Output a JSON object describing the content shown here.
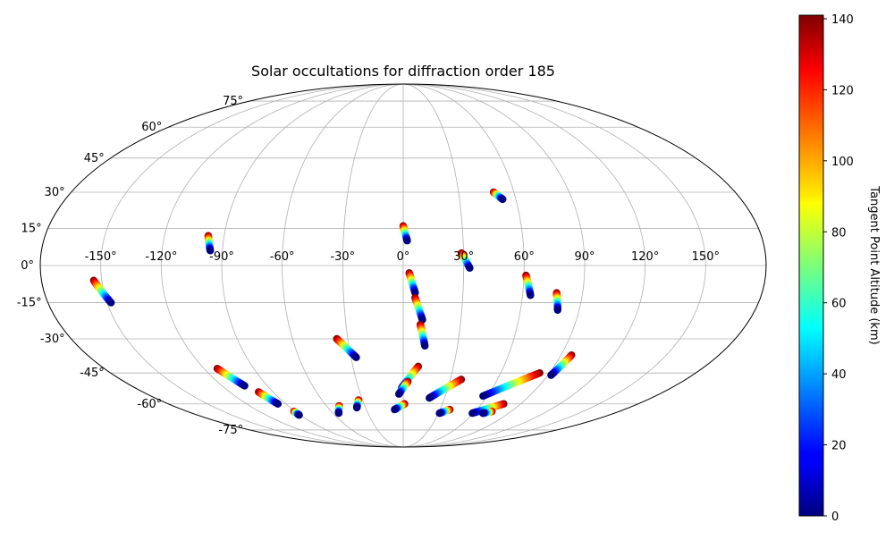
{
  "chart_data": {
    "type": "scatter",
    "projection": "mollweide",
    "title": "Solar occultations for diffraction order 185",
    "lon_ticks": [
      "-150°",
      "-120°",
      "-90°",
      "-60°",
      "-30°",
      "0°",
      "30°",
      "60°",
      "90°",
      "120°",
      "150°"
    ],
    "lon_values": [
      -150,
      -120,
      -90,
      -60,
      -30,
      0,
      30,
      60,
      90,
      120,
      150
    ],
    "lat_ticks": [
      "-75°",
      "-60°",
      "-45°",
      "-30°",
      "-15°",
      "0°",
      "15°",
      "30°",
      "45°",
      "60°",
      "75°"
    ],
    "lat_values": [
      -75,
      -60,
      -45,
      -30,
      -15,
      0,
      15,
      30,
      45,
      60,
      75
    ],
    "grid": true,
    "colorbar": {
      "label": "Tangent Point Altitude (km)",
      "colormap": "jet",
      "range": [
        0,
        141
      ],
      "ticks": [
        "0",
        "20",
        "40",
        "60",
        "80",
        "100",
        "120",
        "140"
      ],
      "tick_values": [
        0,
        20,
        40,
        60,
        80,
        100,
        120,
        140
      ]
    },
    "tracks": [
      {
        "top": [
          -154,
          -6
        ],
        "bottom": [
          -148,
          -15
        ]
      },
      {
        "top": [
          -98,
          12
        ],
        "bottom": [
          -96,
          6
        ]
      },
      {
        "top": [
          0,
          16
        ],
        "bottom": [
          2,
          10
        ]
      },
      {
        "top": [
          29,
          5
        ],
        "bottom": [
          33,
          -1
        ]
      },
      {
        "top": [
          49,
          30
        ],
        "bottom": [
          53,
          27
        ]
      },
      {
        "top": [
          3,
          -3
        ],
        "bottom": [
          6,
          -11
        ]
      },
      {
        "top": [
          6,
          -13
        ],
        "bottom": [
          10,
          -22
        ]
      },
      {
        "top": [
          9,
          -24
        ],
        "bottom": [
          12,
          -33
        ]
      },
      {
        "top": [
          61,
          -4
        ],
        "bottom": [
          64,
          -12
        ]
      },
      {
        "top": [
          77,
          -11
        ],
        "bottom": [
          79,
          -18
        ]
      },
      {
        "top": [
          -36,
          -30
        ],
        "bottom": [
          -27,
          -38
        ]
      },
      {
        "top": [
          -112,
          -43
        ],
        "bottom": [
          -105,
          -51
        ]
      },
      {
        "top": [
          -100,
          -54
        ],
        "bottom": [
          -96,
          -60
        ]
      },
      {
        "top": [
          -91,
          -64
        ],
        "bottom": [
          -91,
          -66
        ]
      },
      {
        "top": [
          -50,
          -61
        ],
        "bottom": [
          -55,
          -65
        ]
      },
      {
        "top": [
          -33,
          -58
        ],
        "bottom": [
          -37,
          -62
        ]
      },
      {
        "top": [
          9,
          -42
        ],
        "bottom": [
          -1,
          -52
        ]
      },
      {
        "top": [
          3,
          -49
        ],
        "bottom": [
          -3,
          -55
        ]
      },
      {
        "top": [
          1,
          -60
        ],
        "bottom": [
          -7,
          -63
        ]
      },
      {
        "top": [
          37,
          -48
        ],
        "bottom": [
          19,
          -57
        ]
      },
      {
        "top": [
          38,
          -63
        ],
        "bottom": [
          31,
          -65
        ]
      },
      {
        "top": [
          84,
          -45
        ],
        "bottom": [
          57,
          -56
        ]
      },
      {
        "top": [
          77,
          -60
        ],
        "bottom": [
          59,
          -65
        ]
      },
      {
        "top": [
          74,
          -64
        ],
        "bottom": [
          68,
          -65
        ]
      },
      {
        "top": [
          96,
          -37
        ],
        "bottom": [
          92,
          -46
        ]
      }
    ]
  }
}
